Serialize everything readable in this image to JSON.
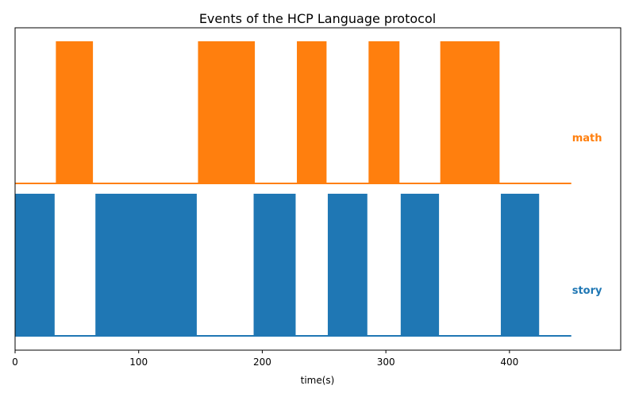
{
  "chart_data": {
    "type": "area",
    "title": "Events of the HCP Language protocol",
    "xlabel": "time(s)",
    "xlim": [
      0,
      490
    ],
    "xticks": [
      0,
      100,
      200,
      300,
      400
    ],
    "x_end": 450,
    "series": [
      {
        "name": "math",
        "color": "#ff7f0e",
        "events": [
          {
            "onset": 33,
            "end": 63
          },
          {
            "onset": 148,
            "end": 194
          },
          {
            "onset": 228,
            "end": 252
          },
          {
            "onset": 286,
            "end": 311
          },
          {
            "onset": 344,
            "end": 392
          }
        ]
      },
      {
        "name": "story",
        "color": "#1f77b4",
        "events": [
          {
            "onset": 0,
            "end": 32
          },
          {
            "onset": 65,
            "end": 147
          },
          {
            "onset": 193,
            "end": 227
          },
          {
            "onset": 253,
            "end": 285
          },
          {
            "onset": 312,
            "end": 343
          },
          {
            "onset": 393,
            "end": 424
          }
        ]
      }
    ]
  }
}
